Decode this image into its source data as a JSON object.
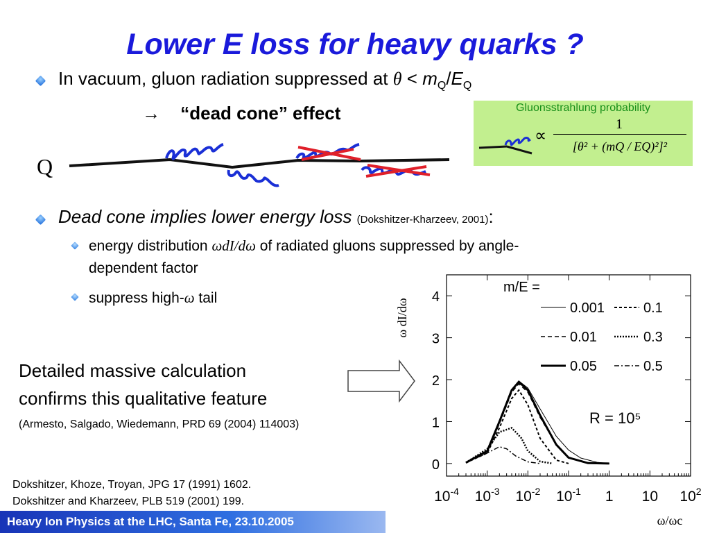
{
  "slide": {
    "title": "Lower E loss for heavy quarks ?",
    "bullet1": {
      "text": "In vacuum, gluon radiation suppressed at",
      "theta": "θ",
      "lt": "<",
      "m": "m",
      "q1": "Q",
      "slash": "/",
      "E": "E",
      "q2": "Q"
    },
    "dead_cone": {
      "arrow": "→",
      "text": "“dead cone” effect"
    },
    "quark_label": "Q",
    "gluon_box": {
      "label": "Gluonsstrahlung probability",
      "propto": "∝",
      "numerator": "1",
      "denominator": "[θ² + (mQ / EQ)²]²"
    },
    "bullet2": {
      "text": "Dead cone implies lower energy loss",
      "ref": "(Dokshitzer-Kharzeev, 2001)",
      "colon": ":"
    },
    "sub1": {
      "pre": "energy distribution ",
      "omega_d": "ωdI/dω",
      "post": " of radiated gluons suppressed by angle-",
      "line2": "dependent factor"
    },
    "sub2": {
      "pre": "suppress high-",
      "omega": "ω",
      "post": " tail"
    },
    "calc": {
      "line1": "Detailed massive calculation",
      "line2": "confirms this qualitative feature",
      "ref": "(Armesto, Salgado, Wiedemann, PRD 69 (2004) 114003)"
    },
    "refs": [
      "Dokshitzer, Khoze, Troyan, JPG 17 (1991) 1602.",
      "Dokshitzer and Kharzeev, PLB 519 (2001) 199."
    ],
    "footer": "Heavy Ion Physics at the LHC, Santa Fe, 23.10.2005"
  },
  "colors": {
    "title": "#1a1adb",
    "gluon_box": "#c2ef8f",
    "gluon_label": "#178f18",
    "gluon_coil": "#1a2fd6",
    "cross": "#e0202a",
    "footer": "#1834b7"
  },
  "chart_data": {
    "type": "line",
    "title": "",
    "ylabel": "ω dI/dω",
    "xlabel": "ω/ωc",
    "x_scale": "log",
    "xlim": [
      0.0001,
      100
    ],
    "ylim": [
      -0.3,
      4.5
    ],
    "x_ticks": [
      "10-4",
      "10-3",
      "10-2",
      "10-1",
      "1",
      "10",
      "102"
    ],
    "y_ticks": [
      "0",
      "1",
      "2",
      "3",
      "4"
    ],
    "legend_title": "m/E =",
    "annotation": "R = 10⁵",
    "series": [
      {
        "name": "0.001",
        "x": [
          0.0003,
          0.001,
          0.002,
          0.004,
          0.006,
          0.01,
          0.02,
          0.05,
          0.1,
          0.2,
          0.5,
          1
        ],
        "y": [
          0.02,
          0.3,
          1.0,
          1.75,
          1.97,
          1.8,
          1.3,
          0.65,
          0.32,
          0.13,
          0.03,
          0.0
        ]
      },
      {
        "name": "0.01",
        "x": [
          0.0003,
          0.001,
          0.002,
          0.004,
          0.006,
          0.01,
          0.02,
          0.05,
          0.1,
          0.3,
          1
        ],
        "y": [
          0.02,
          0.28,
          0.95,
          1.7,
          1.9,
          1.7,
          1.1,
          0.45,
          0.15,
          0.02,
          0.0
        ]
      },
      {
        "name": "0.05",
        "x": [
          0.0003,
          0.001,
          0.002,
          0.004,
          0.006,
          0.01,
          0.02,
          0.05,
          0.1,
          0.3,
          1
        ],
        "y": [
          0.02,
          0.3,
          1.0,
          1.75,
          1.95,
          1.75,
          1.15,
          0.45,
          0.14,
          0.01,
          0.0
        ]
      },
      {
        "name": "0.1",
        "x": [
          0.0003,
          0.001,
          0.002,
          0.004,
          0.006,
          0.01,
          0.02,
          0.05,
          0.1
        ],
        "y": [
          0.02,
          0.25,
          0.85,
          1.55,
          1.75,
          1.4,
          0.6,
          0.08,
          0.0
        ]
      },
      {
        "name": "0.3",
        "x": [
          0.0003,
          0.001,
          0.002,
          0.004,
          0.007,
          0.01,
          0.02,
          0.04
        ],
        "y": [
          0.02,
          0.35,
          0.75,
          0.85,
          0.6,
          0.3,
          0.05,
          0.0
        ]
      },
      {
        "name": "0.5",
        "x": [
          0.0003,
          0.001,
          0.002,
          0.003,
          0.005,
          0.01,
          0.02
        ],
        "y": [
          0.02,
          0.25,
          0.4,
          0.35,
          0.18,
          0.04,
          0.0
        ]
      }
    ]
  }
}
